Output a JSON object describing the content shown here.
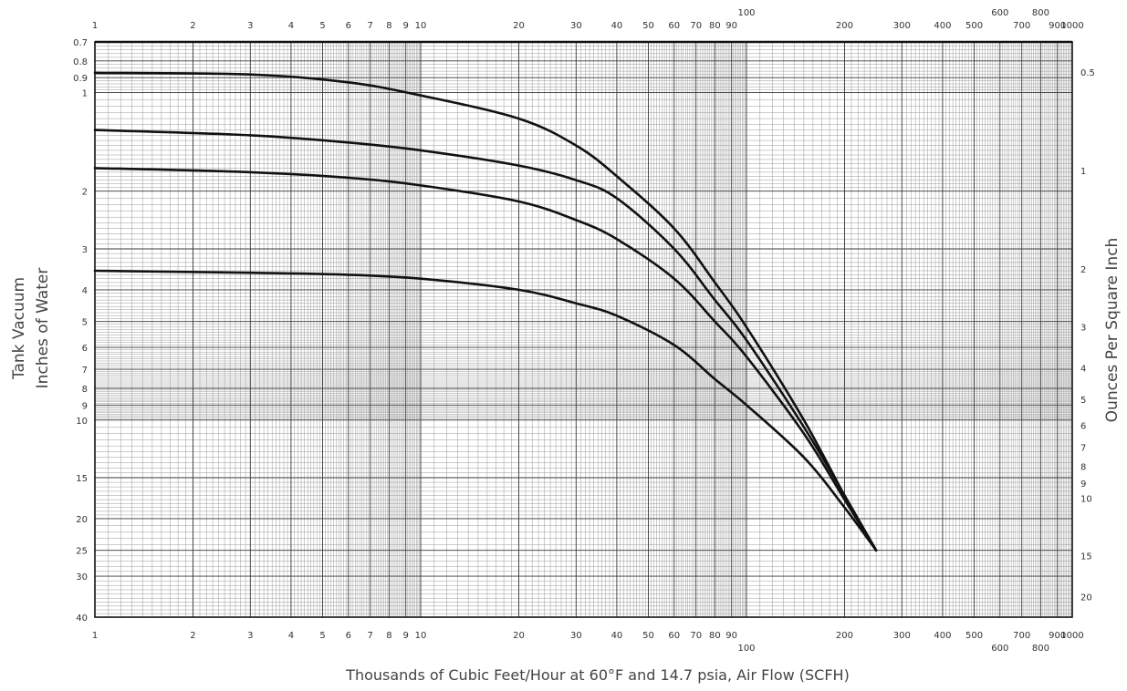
{
  "chart_data": {
    "type": "line",
    "title": "",
    "xlabel": "Thousands of Cubic Feet/Hour at 60°F and 14.7 psia, Air Flow (SCFH)",
    "ylabel": [
      "Tank Vacuum",
      "Inches of Water"
    ],
    "y2label": "Ounces Per Square Inch",
    "x_scale": "log",
    "y_scale": "log",
    "y_inverted": true,
    "xlim": [
      1,
      1000
    ],
    "ylim": [
      0.7,
      40
    ],
    "grid": true,
    "legend": "none",
    "x_ticks": [
      "1",
      "2",
      "3",
      "4",
      "5",
      "6",
      "7",
      "8",
      "9",
      "10",
      "20",
      "30",
      "40",
      "50",
      "60",
      "70",
      "80",
      "90",
      "100",
      "200",
      "300",
      "400",
      "500",
      "600",
      "700",
      "800",
      "900",
      "1000"
    ],
    "y_ticks_left": [
      "0.7",
      "0.8",
      "0.9",
      "1",
      "2",
      "3",
      "4",
      "5",
      "6",
      "7",
      "8",
      "9",
      "10",
      "15",
      "20",
      "25",
      "30",
      "40"
    ],
    "y_ticks_right": [
      "0.5",
      "1",
      "2",
      "3",
      "4",
      "5",
      "6",
      "7",
      "8",
      "9",
      "10",
      "15",
      "20"
    ],
    "series": [
      {
        "x": [
          1,
          3,
          6,
          10,
          20,
          30,
          40,
          60,
          80,
          100,
          150,
          200,
          250
        ],
        "y": [
          0.87,
          0.88,
          0.93,
          1.02,
          1.2,
          1.45,
          1.8,
          2.6,
          3.8,
          5.2,
          10,
          17,
          25
        ]
      },
      {
        "x": [
          1,
          3,
          6,
          10,
          20,
          30,
          40,
          60,
          80,
          100,
          150,
          200,
          250
        ],
        "y": [
          1.3,
          1.35,
          1.42,
          1.5,
          1.67,
          1.85,
          2.1,
          3.0,
          4.3,
          5.7,
          10.5,
          17,
          25
        ]
      },
      {
        "x": [
          1,
          3,
          6,
          10,
          20,
          30,
          40,
          60,
          80,
          100,
          150,
          200,
          250
        ],
        "y": [
          1.7,
          1.75,
          1.82,
          1.92,
          2.15,
          2.45,
          2.8,
          3.7,
          5.0,
          6.4,
          11,
          17.5,
          25
        ]
      },
      {
        "x": [
          1,
          3,
          6,
          10,
          20,
          30,
          40,
          60,
          80,
          100,
          150,
          200,
          250
        ],
        "y": [
          3.5,
          3.55,
          3.6,
          3.7,
          4.0,
          4.4,
          4.8,
          5.9,
          7.5,
          9.0,
          13,
          18.5,
          25
        ]
      }
    ]
  }
}
